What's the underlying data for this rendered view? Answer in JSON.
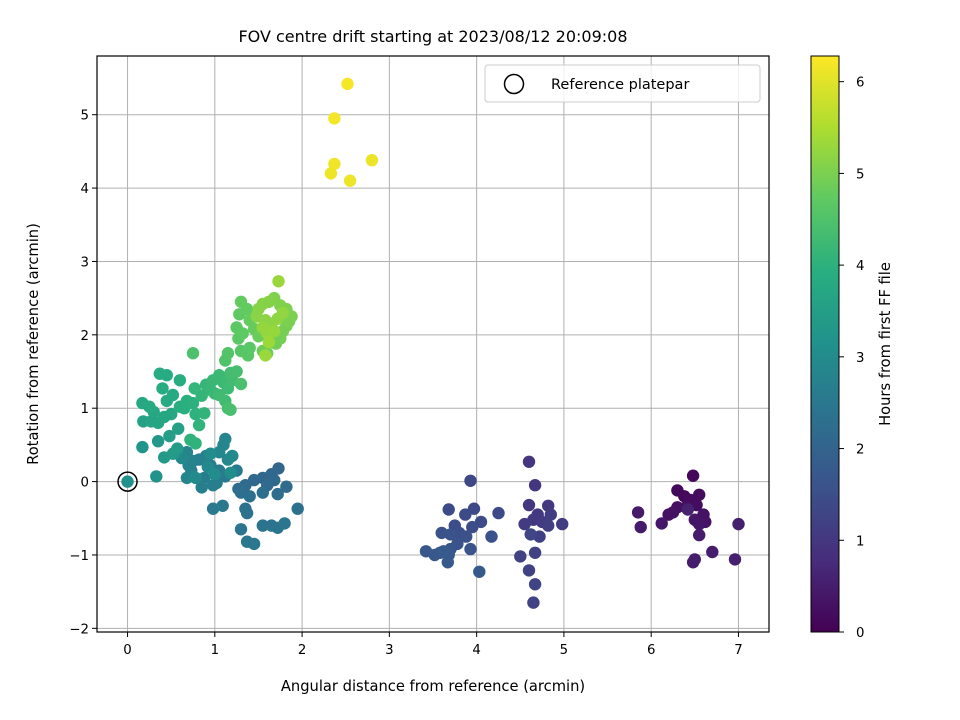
{
  "chart_data": {
    "type": "scatter",
    "title": "FOV centre drift starting at 2023/08/12 20:09:08",
    "xlabel": "Angular distance from reference (arcmin)",
    "ylabel": "Rotation from reference (arcmin)",
    "xlim": [
      -0.35,
      7.35
    ],
    "ylim": [
      -2.05,
      5.8
    ],
    "xticks": [
      0,
      1,
      2,
      3,
      4,
      5,
      6,
      7
    ],
    "yticks": [
      -2,
      -1,
      0,
      1,
      2,
      3,
      4,
      5
    ],
    "grid": true,
    "legend": {
      "placement": "top-right",
      "entries": [
        "Reference platepar"
      ]
    },
    "colorbar": {
      "label": "Hours from first FF file",
      "range": [
        0,
        6.28
      ],
      "ticks": [
        0,
        1,
        2,
        3,
        4,
        5,
        6
      ],
      "colormap": "viridis"
    },
    "reference_point": {
      "x": 0,
      "y": 0
    },
    "points": [
      {
        "x": 6.48,
        "y": 0.08,
        "h": 0.1
      },
      {
        "x": 6.3,
        "y": -0.12,
        "h": 0.12
      },
      {
        "x": 6.38,
        "y": -0.2,
        "h": 0.15
      },
      {
        "x": 6.45,
        "y": -0.25,
        "h": 0.18
      },
      {
        "x": 6.55,
        "y": -0.18,
        "h": 0.2
      },
      {
        "x": 6.52,
        "y": -0.32,
        "h": 0.22
      },
      {
        "x": 6.4,
        "y": -0.35,
        "h": 0.24
      },
      {
        "x": 6.3,
        "y": -0.35,
        "h": 0.26
      },
      {
        "x": 6.2,
        "y": -0.45,
        "h": 0.28
      },
      {
        "x": 6.25,
        "y": -0.42,
        "h": 0.3
      },
      {
        "x": 6.6,
        "y": -0.45,
        "h": 0.32
      },
      {
        "x": 6.62,
        "y": -0.55,
        "h": 0.34
      },
      {
        "x": 6.5,
        "y": -0.52,
        "h": 0.36
      },
      {
        "x": 6.55,
        "y": -0.58,
        "h": 0.38
      },
      {
        "x": 6.12,
        "y": -0.57,
        "h": 0.4
      },
      {
        "x": 5.85,
        "y": -0.42,
        "h": 0.42
      },
      {
        "x": 5.88,
        "y": -0.62,
        "h": 0.44
      },
      {
        "x": 6.55,
        "y": -0.73,
        "h": 0.46
      },
      {
        "x": 6.7,
        "y": -0.96,
        "h": 0.48
      },
      {
        "x": 6.5,
        "y": -1.06,
        "h": 0.5
      },
      {
        "x": 6.48,
        "y": -1.1,
        "h": 0.52
      },
      {
        "x": 6.96,
        "y": -1.06,
        "h": 0.54
      },
      {
        "x": 7.0,
        "y": -0.58,
        "h": 0.56
      },
      {
        "x": 6.42,
        "y": -0.38,
        "h": 0.58
      },
      {
        "x": 4.6,
        "y": 0.27,
        "h": 0.95
      },
      {
        "x": 4.67,
        "y": -0.05,
        "h": 0.97
      },
      {
        "x": 4.6,
        "y": -0.32,
        "h": 0.99
      },
      {
        "x": 4.82,
        "y": -0.33,
        "h": 1.01
      },
      {
        "x": 4.7,
        "y": -0.45,
        "h": 1.03
      },
      {
        "x": 4.65,
        "y": -0.52,
        "h": 1.05
      },
      {
        "x": 4.75,
        "y": -0.55,
        "h": 1.07
      },
      {
        "x": 4.55,
        "y": -0.58,
        "h": 1.09
      },
      {
        "x": 4.85,
        "y": -0.45,
        "h": 1.11
      },
      {
        "x": 4.98,
        "y": -0.58,
        "h": 1.13
      },
      {
        "x": 4.82,
        "y": -0.6,
        "h": 1.15
      },
      {
        "x": 4.72,
        "y": -0.75,
        "h": 1.17
      },
      {
        "x": 4.67,
        "y": -0.97,
        "h": 1.19
      },
      {
        "x": 4.5,
        "y": -1.02,
        "h": 1.21
      },
      {
        "x": 4.6,
        "y": -1.21,
        "h": 1.23
      },
      {
        "x": 4.67,
        "y": -1.4,
        "h": 1.25
      },
      {
        "x": 4.65,
        "y": -1.65,
        "h": 1.27
      },
      {
        "x": 4.62,
        "y": -0.72,
        "h": 1.29
      },
      {
        "x": 3.93,
        "y": 0.01,
        "h": 1.35
      },
      {
        "x": 4.25,
        "y": -0.43,
        "h": 1.37
      },
      {
        "x": 3.97,
        "y": -0.37,
        "h": 1.39
      },
      {
        "x": 3.87,
        "y": -0.45,
        "h": 1.41
      },
      {
        "x": 3.68,
        "y": -0.38,
        "h": 1.43
      },
      {
        "x": 4.05,
        "y": -0.55,
        "h": 1.45
      },
      {
        "x": 3.95,
        "y": -0.62,
        "h": 1.47
      },
      {
        "x": 3.75,
        "y": -0.6,
        "h": 1.49
      },
      {
        "x": 3.8,
        "y": -0.7,
        "h": 1.51
      },
      {
        "x": 3.88,
        "y": -0.75,
        "h": 1.53
      },
      {
        "x": 4.17,
        "y": -0.75,
        "h": 1.55
      },
      {
        "x": 3.6,
        "y": -0.7,
        "h": 1.57
      },
      {
        "x": 3.7,
        "y": -0.72,
        "h": 1.59
      },
      {
        "x": 3.78,
        "y": -0.85,
        "h": 1.61
      },
      {
        "x": 3.93,
        "y": -0.92,
        "h": 1.63
      },
      {
        "x": 3.7,
        "y": -0.92,
        "h": 1.65
      },
      {
        "x": 3.58,
        "y": -0.97,
        "h": 1.67
      },
      {
        "x": 3.42,
        "y": -0.95,
        "h": 1.69
      },
      {
        "x": 3.52,
        "y": -1.0,
        "h": 1.71
      },
      {
        "x": 3.68,
        "y": -1.0,
        "h": 1.73
      },
      {
        "x": 3.67,
        "y": -1.1,
        "h": 1.75
      },
      {
        "x": 4.03,
        "y": -1.23,
        "h": 1.77
      },
      {
        "x": 3.62,
        "y": -0.95,
        "h": 1.79
      },
      {
        "x": 1.73,
        "y": 0.18,
        "h": 2.05
      },
      {
        "x": 1.65,
        "y": 0.1,
        "h": 2.07
      },
      {
        "x": 1.55,
        "y": 0.05,
        "h": 2.09
      },
      {
        "x": 1.45,
        "y": 0.02,
        "h": 2.11
      },
      {
        "x": 1.68,
        "y": 0.02,
        "h": 2.13
      },
      {
        "x": 1.82,
        "y": -0.07,
        "h": 2.15
      },
      {
        "x": 1.6,
        "y": -0.05,
        "h": 2.17
      },
      {
        "x": 1.35,
        "y": -0.05,
        "h": 2.19
      },
      {
        "x": 1.27,
        "y": -0.1,
        "h": 2.21
      },
      {
        "x": 1.72,
        "y": -0.17,
        "h": 2.23
      },
      {
        "x": 1.55,
        "y": -0.15,
        "h": 2.25
      },
      {
        "x": 1.3,
        "y": -0.15,
        "h": 2.27
      },
      {
        "x": 1.4,
        "y": -0.2,
        "h": 2.29
      },
      {
        "x": 1.95,
        "y": -0.37,
        "h": 2.31
      },
      {
        "x": 1.35,
        "y": -0.37,
        "h": 2.33
      },
      {
        "x": 1.37,
        "y": -0.43,
        "h": 2.35
      },
      {
        "x": 1.55,
        "y": -0.6,
        "h": 2.37
      },
      {
        "x": 1.65,
        "y": -0.6,
        "h": 2.39
      },
      {
        "x": 1.72,
        "y": -0.63,
        "h": 2.41
      },
      {
        "x": 1.8,
        "y": -0.57,
        "h": 2.43
      },
      {
        "x": 1.3,
        "y": -0.65,
        "h": 2.45
      },
      {
        "x": 1.37,
        "y": -0.82,
        "h": 2.47
      },
      {
        "x": 1.45,
        "y": -0.85,
        "h": 2.49
      },
      {
        "x": 1.09,
        "y": -0.33,
        "h": 2.51
      },
      {
        "x": 0.98,
        "y": -0.37,
        "h": 2.53
      },
      {
        "x": 1.25,
        "y": 0.15,
        "h": 2.55
      },
      {
        "x": 1.12,
        "y": 0.07,
        "h": 2.57
      },
      {
        "x": 1.05,
        "y": 0.15,
        "h": 2.59
      },
      {
        "x": 0.95,
        "y": 0.22,
        "h": 2.61
      },
      {
        "x": 0.88,
        "y": 0.05,
        "h": 2.63
      },
      {
        "x": 0.98,
        "y": -0.05,
        "h": 2.65
      },
      {
        "x": 1.02,
        "y": -0.02,
        "h": 2.67
      },
      {
        "x": 0.85,
        "y": -0.08,
        "h": 2.69
      },
      {
        "x": 0.82,
        "y": 0.3,
        "h": 2.71
      },
      {
        "x": 0.9,
        "y": 0.35,
        "h": 2.73
      },
      {
        "x": 0.75,
        "y": 0.28,
        "h": 2.75
      },
      {
        "x": 0.73,
        "y": 0.15,
        "h": 2.77
      },
      {
        "x": 0.7,
        "y": 0.22,
        "h": 2.79
      },
      {
        "x": 0.68,
        "y": 0.4,
        "h": 2.81
      },
      {
        "x": 0.68,
        "y": 0.05,
        "h": 2.83
      },
      {
        "x": 1.1,
        "y": 0.5,
        "h": 2.85
      },
      {
        "x": 1.12,
        "y": 0.58,
        "h": 2.87
      },
      {
        "x": 1.05,
        "y": 0.4,
        "h": 2.89
      },
      {
        "x": 1.15,
        "y": 0.3,
        "h": 2.91
      },
      {
        "x": 0.92,
        "y": 0.2,
        "h": 2.93
      },
      {
        "x": 1.2,
        "y": 0.35,
        "h": 2.95
      },
      {
        "x": 0.62,
        "y": 0.32,
        "h": 2.97
      },
      {
        "x": 0.78,
        "y": 0.05,
        "h": 2.99
      },
      {
        "x": 1.0,
        "y": 0.1,
        "h": 3.01
      },
      {
        "x": 1.18,
        "y": 0.12,
        "h": 3.03
      },
      {
        "x": 0.95,
        "y": 0.38,
        "h": 3.05
      },
      {
        "x": 0.33,
        "y": 0.07,
        "h": 3.2
      },
      {
        "x": 0.17,
        "y": 0.47,
        "h": 3.25
      },
      {
        "x": 0.35,
        "y": 0.55,
        "h": 3.3
      },
      {
        "x": 0.42,
        "y": 0.33,
        "h": 3.35
      },
      {
        "x": 0.52,
        "y": 0.38,
        "h": 3.4
      },
      {
        "x": 0.57,
        "y": 0.45,
        "h": 3.45
      },
      {
        "x": 0.48,
        "y": 0.62,
        "h": 3.5
      },
      {
        "x": 0.58,
        "y": 0.72,
        "h": 3.55
      },
      {
        "x": 0.18,
        "y": 0.82,
        "h": 3.6
      },
      {
        "x": 0.27,
        "y": 0.82,
        "h": 3.65
      },
      {
        "x": 0.35,
        "y": 0.8,
        "h": 3.68
      },
      {
        "x": 0.42,
        "y": 0.88,
        "h": 3.7
      },
      {
        "x": 0.5,
        "y": 0.92,
        "h": 3.72
      },
      {
        "x": 0.3,
        "y": 0.95,
        "h": 3.74
      },
      {
        "x": 0.17,
        "y": 1.07,
        "h": 3.76
      },
      {
        "x": 0.25,
        "y": 1.02,
        "h": 3.78
      },
      {
        "x": 0.45,
        "y": 1.1,
        "h": 3.8
      },
      {
        "x": 0.52,
        "y": 1.18,
        "h": 3.82
      },
      {
        "x": 0.4,
        "y": 1.27,
        "h": 3.84
      },
      {
        "x": 0.45,
        "y": 1.45,
        "h": 3.86
      },
      {
        "x": 0.37,
        "y": 1.47,
        "h": 3.88
      },
      {
        "x": 0.6,
        "y": 1.38,
        "h": 3.9
      },
      {
        "x": 0.65,
        "y": 1.0,
        "h": 3.92
      },
      {
        "x": 0.6,
        "y": 1.02,
        "h": 3.94
      },
      {
        "x": 0.68,
        "y": 1.1,
        "h": 3.96
      },
      {
        "x": 0.75,
        "y": 1.07,
        "h": 3.98
      },
      {
        "x": 0.78,
        "y": 0.92,
        "h": 4.0
      },
      {
        "x": 0.72,
        "y": 0.57,
        "h": 4.02
      },
      {
        "x": 0.78,
        "y": 0.52,
        "h": 4.04
      },
      {
        "x": 0.82,
        "y": 0.77,
        "h": 4.06
      },
      {
        "x": 0.88,
        "y": 0.93,
        "h": 4.08
      },
      {
        "x": 0.85,
        "y": 1.17,
        "h": 4.1
      },
      {
        "x": 0.77,
        "y": 1.27,
        "h": 4.12
      },
      {
        "x": 0.9,
        "y": 1.32,
        "h": 4.14
      },
      {
        "x": 0.95,
        "y": 1.25,
        "h": 4.16
      },
      {
        "x": 1.0,
        "y": 1.2,
        "h": 4.18
      },
      {
        "x": 0.98,
        "y": 1.38,
        "h": 4.2
      },
      {
        "x": 1.05,
        "y": 1.45,
        "h": 4.22
      },
      {
        "x": 1.1,
        "y": 1.35,
        "h": 4.24
      },
      {
        "x": 1.15,
        "y": 1.27,
        "h": 4.26
      },
      {
        "x": 1.05,
        "y": 1.18,
        "h": 4.28
      },
      {
        "x": 1.12,
        "y": 1.1,
        "h": 4.3
      },
      {
        "x": 1.2,
        "y": 1.38,
        "h": 4.32
      },
      {
        "x": 1.18,
        "y": 1.48,
        "h": 4.34
      },
      {
        "x": 1.25,
        "y": 1.5,
        "h": 4.36
      },
      {
        "x": 1.15,
        "y": 1.0,
        "h": 4.38
      },
      {
        "x": 1.18,
        "y": 0.98,
        "h": 4.4
      },
      {
        "x": 1.3,
        "y": 1.33,
        "h": 4.42
      },
      {
        "x": 0.75,
        "y": 1.75,
        "h": 4.45
      },
      {
        "x": 1.12,
        "y": 1.65,
        "h": 4.5
      },
      {
        "x": 1.15,
        "y": 1.75,
        "h": 4.55
      },
      {
        "x": 1.3,
        "y": 1.78,
        "h": 4.6
      },
      {
        "x": 1.38,
        "y": 1.72,
        "h": 4.62
      },
      {
        "x": 1.4,
        "y": 1.82,
        "h": 4.64
      },
      {
        "x": 1.27,
        "y": 1.95,
        "h": 4.66
      },
      {
        "x": 1.25,
        "y": 2.1,
        "h": 4.68
      },
      {
        "x": 1.32,
        "y": 2.02,
        "h": 4.7
      },
      {
        "x": 1.28,
        "y": 2.28,
        "h": 4.72
      },
      {
        "x": 1.37,
        "y": 2.35,
        "h": 4.74
      },
      {
        "x": 1.3,
        "y": 2.45,
        "h": 4.76
      },
      {
        "x": 1.4,
        "y": 2.2,
        "h": 4.78
      },
      {
        "x": 1.45,
        "y": 2.08,
        "h": 4.8
      },
      {
        "x": 1.5,
        "y": 1.98,
        "h": 4.82
      },
      {
        "x": 1.55,
        "y": 1.78,
        "h": 4.84
      },
      {
        "x": 1.6,
        "y": 1.75,
        "h": 4.86
      },
      {
        "x": 1.65,
        "y": 1.9,
        "h": 4.88
      },
      {
        "x": 1.7,
        "y": 1.88,
        "h": 4.9
      },
      {
        "x": 1.75,
        "y": 1.95,
        "h": 4.92
      },
      {
        "x": 1.78,
        "y": 2.05,
        "h": 4.94
      },
      {
        "x": 1.82,
        "y": 2.12,
        "h": 4.96
      },
      {
        "x": 1.85,
        "y": 2.18,
        "h": 4.98
      },
      {
        "x": 1.88,
        "y": 2.25,
        "h": 5.0
      },
      {
        "x": 1.82,
        "y": 2.35,
        "h": 5.02
      },
      {
        "x": 1.75,
        "y": 2.4,
        "h": 5.04
      },
      {
        "x": 1.68,
        "y": 2.5,
        "h": 5.06
      },
      {
        "x": 1.62,
        "y": 2.45,
        "h": 5.08
      },
      {
        "x": 1.55,
        "y": 2.42,
        "h": 5.1
      },
      {
        "x": 1.5,
        "y": 2.35,
        "h": 5.12
      },
      {
        "x": 1.48,
        "y": 2.25,
        "h": 5.14
      },
      {
        "x": 1.58,
        "y": 2.2,
        "h": 5.16
      },
      {
        "x": 1.65,
        "y": 2.15,
        "h": 5.18
      },
      {
        "x": 1.72,
        "y": 2.22,
        "h": 5.2
      },
      {
        "x": 1.78,
        "y": 2.3,
        "h": 5.22
      },
      {
        "x": 1.6,
        "y": 2.02,
        "h": 5.24
      },
      {
        "x": 1.55,
        "y": 2.1,
        "h": 5.26
      },
      {
        "x": 1.68,
        "y": 2.05,
        "h": 5.28
      },
      {
        "x": 1.73,
        "y": 2.73,
        "h": 5.3
      },
      {
        "x": 1.58,
        "y": 1.72,
        "h": 5.32
      },
      {
        "x": 1.62,
        "y": 1.9,
        "h": 5.34
      },
      {
        "x": 2.52,
        "y": 5.42,
        "h": 6.2
      },
      {
        "x": 2.37,
        "y": 4.95,
        "h": 6.18
      },
      {
        "x": 2.37,
        "y": 4.33,
        "h": 6.16
      },
      {
        "x": 2.33,
        "y": 4.2,
        "h": 6.14
      },
      {
        "x": 2.55,
        "y": 4.1,
        "h": 6.12
      },
      {
        "x": 2.8,
        "y": 4.38,
        "h": 6.1
      }
    ]
  }
}
